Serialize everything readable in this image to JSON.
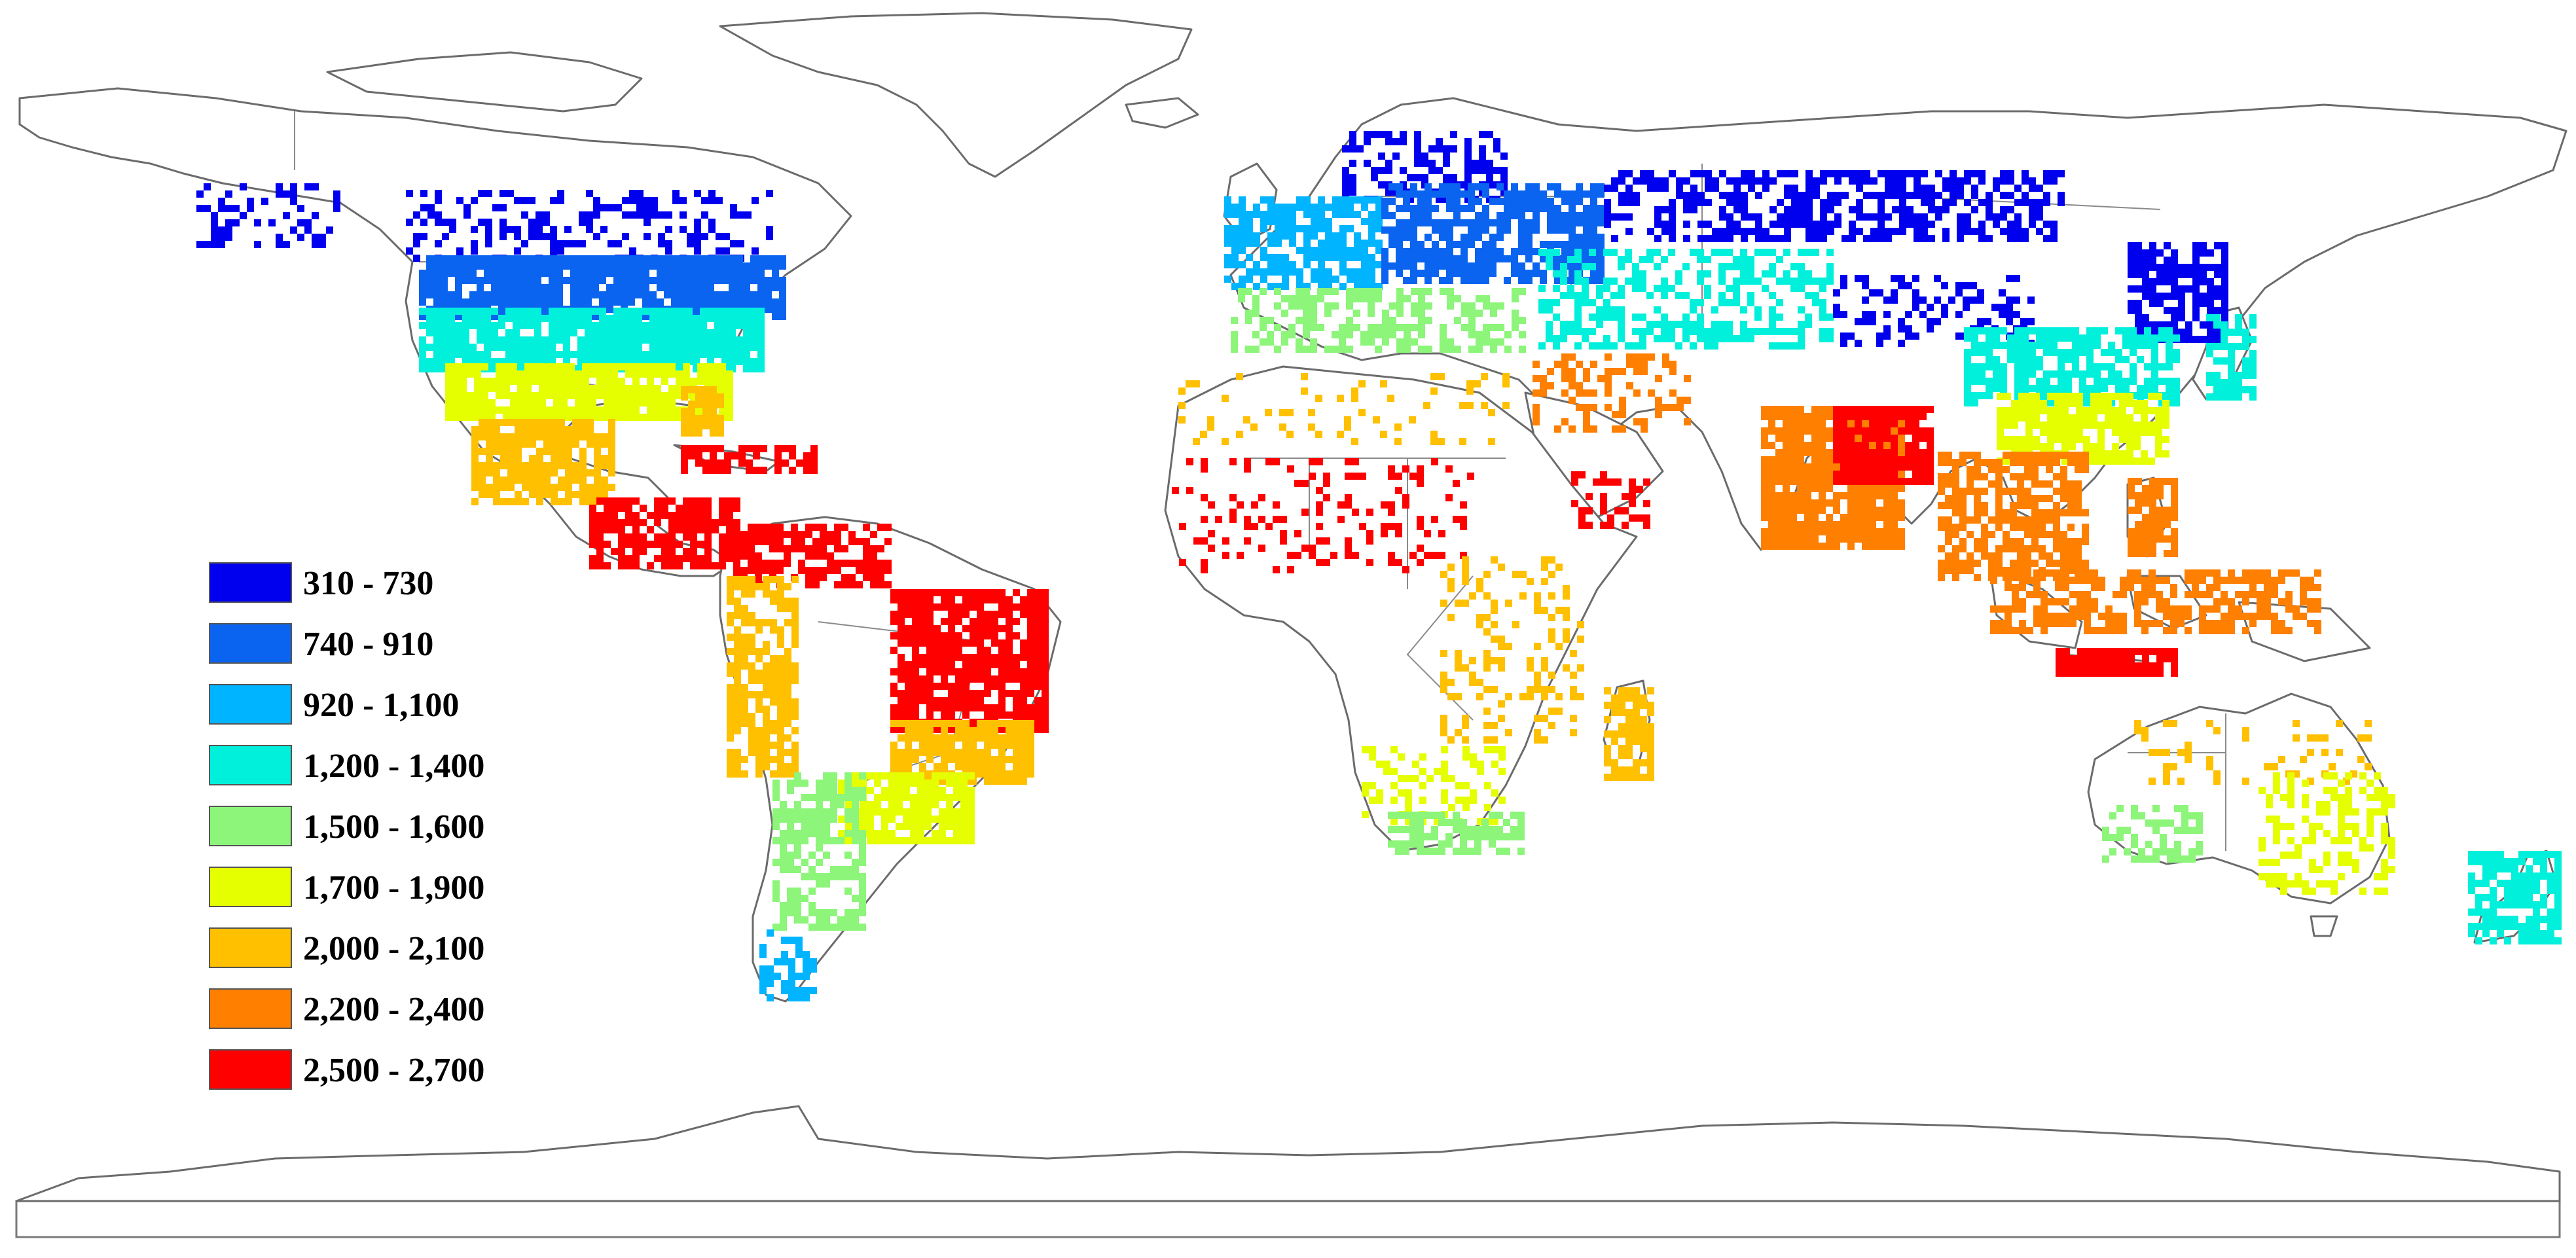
{
  "legend": {
    "classes": [
      {
        "label": "310 - 730",
        "min": 310,
        "max": 730,
        "color": "#0000ee"
      },
      {
        "label": "740 - 910",
        "min": 740,
        "max": 910,
        "color": "#0a64f0"
      },
      {
        "label": "920 - 1,100",
        "min": 920,
        "max": 1100,
        "color": "#00b4ff"
      },
      {
        "label": "1,200 - 1,400",
        "min": 1200,
        "max": 1400,
        "color": "#00f0dc"
      },
      {
        "label": "1,500 - 1,600",
        "min": 1500,
        "max": 1600,
        "color": "#8cf57a"
      },
      {
        "label": "1,700 - 1,900",
        "min": 1700,
        "max": 1900,
        "color": "#e6ff00"
      },
      {
        "label": "2,000 - 2,100",
        "min": 2000,
        "max": 2100,
        "color": "#ffc000"
      },
      {
        "label": "2,200 - 2,400",
        "min": 2200,
        "max": 2400,
        "color": "#ff7f00"
      },
      {
        "label": "2,500 - 2,700",
        "min": 2500,
        "max": 2700,
        "color": "#ff0000"
      }
    ]
  },
  "map": {
    "projection": "plate-carree",
    "land_fill": "#ffffff",
    "border_color": "#6b6b6b",
    "regions": [
      {
        "name": "Alaska",
        "class": 0
      },
      {
        "name": "Canada",
        "class": 0
      },
      {
        "name": "USA north",
        "class": 1
      },
      {
        "name": "USA central",
        "class": 3
      },
      {
        "name": "USA south",
        "class": 5
      },
      {
        "name": "Florida",
        "class": 6
      },
      {
        "name": "Mexico",
        "class": 6
      },
      {
        "name": "Central America",
        "class": 8
      },
      {
        "name": "Caribbean",
        "class": 8
      },
      {
        "name": "Northern South America",
        "class": 8
      },
      {
        "name": "Andes",
        "class": 6
      },
      {
        "name": "Central Brazil",
        "class": 8
      },
      {
        "name": "Eastern Brazil",
        "class": 6
      },
      {
        "name": "Southern Brazil",
        "class": 5
      },
      {
        "name": "Argentina",
        "class": 4
      },
      {
        "name": "Southern Chile",
        "class": 2
      },
      {
        "name": "Scandinavia",
        "class": 0
      },
      {
        "name": "Western Europe",
        "class": 2
      },
      {
        "name": "Eastern Europe",
        "class": 1
      },
      {
        "name": "Southern Europe",
        "class": 4
      },
      {
        "name": "Russia",
        "class": 0
      },
      {
        "name": "Central Asia",
        "class": 3
      },
      {
        "name": "Mongolia",
        "class": 0
      },
      {
        "name": "Northeast China",
        "class": 0
      },
      {
        "name": "China central",
        "class": 3
      },
      {
        "name": "South China",
        "class": 5
      },
      {
        "name": "Japan",
        "class": 3
      },
      {
        "name": "Middle East",
        "class": 7
      },
      {
        "name": "Arabian coast",
        "class": 8
      },
      {
        "name": "India",
        "class": 7
      },
      {
        "name": "India east",
        "class": 8
      },
      {
        "name": "Southeast Asia",
        "class": 7
      },
      {
        "name": "Philippines",
        "class": 7
      },
      {
        "name": "Indonesia",
        "class": 7
      },
      {
        "name": "Java",
        "class": 8
      },
      {
        "name": "West Africa",
        "class": 8
      },
      {
        "name": "East Africa",
        "class": 6
      },
      {
        "name": "Madagascar",
        "class": 6
      },
      {
        "name": "Southern Africa",
        "class": 5
      },
      {
        "name": "South Africa coast",
        "class": 4
      },
      {
        "name": "North Africa",
        "class": 6
      },
      {
        "name": "Australia north",
        "class": 6
      },
      {
        "name": "Australia east",
        "class": 5
      },
      {
        "name": "Australia southwest",
        "class": 4
      },
      {
        "name": "New Zealand",
        "class": 3
      }
    ]
  }
}
